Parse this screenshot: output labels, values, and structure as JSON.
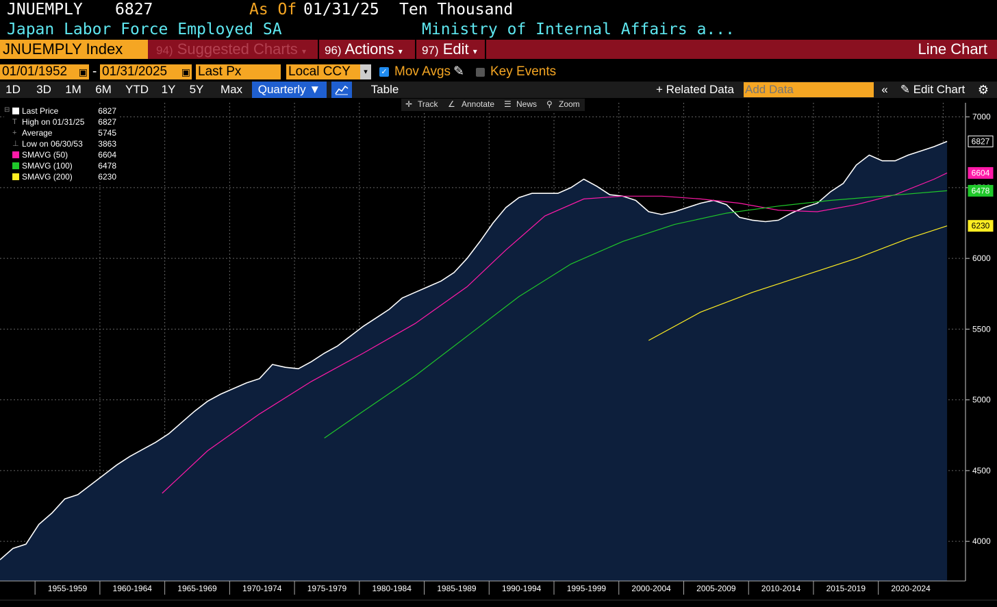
{
  "header": {
    "ticker": "JNUEMPLY",
    "last_value": "6827",
    "as_of_label": "As Of",
    "as_of_date": "01/31/25",
    "units": "Ten Thousand",
    "description": "Japan Labor Force Employed SA",
    "source": "Ministry of Internal Affairs a..."
  },
  "menubar": {
    "security": "JNUEMPLY Index",
    "suggested_num": "94)",
    "suggested": "Suggested Charts",
    "actions_num": "96)",
    "actions": "Actions",
    "edit_num": "97)",
    "edit": "Edit",
    "chart_type": "Line Chart"
  },
  "controls": {
    "start_date": "01/01/1952",
    "dash": "-",
    "end_date": "01/31/2025",
    "field": "Last Px",
    "currency": "Local CCY",
    "mov_avgs": "Mov Avgs",
    "key_events": "Key Events"
  },
  "periods": [
    "1D",
    "3D",
    "1M",
    "6M",
    "YTD",
    "1Y",
    "5Y",
    "Max"
  ],
  "frequency": "Quarterly",
  "table_label": "Table",
  "related_data": "Related Data",
  "add_data_placeholder": "Add Data",
  "edit_chart": "Edit Chart",
  "tools": {
    "track": "Track",
    "annotate": "Annotate",
    "news": "News",
    "zoom": "Zoom"
  },
  "legend": [
    {
      "label": "Last Price",
      "value": "6827",
      "color": "#ffffff"
    },
    {
      "label": "High on 01/31/25",
      "value": "6827",
      "color": ""
    },
    {
      "label": "Average",
      "value": "5745",
      "color": ""
    },
    {
      "label": "Low on 06/30/53",
      "value": "3863",
      "color": ""
    },
    {
      "label": "SMAVG (50)",
      "value": "6604",
      "color": "#ff1aa8"
    },
    {
      "label": "SMAVG (100)",
      "value": "6478",
      "color": "#1fc82a"
    },
    {
      "label": "SMAVG (200)",
      "value": "6230",
      "color": "#ffee22"
    }
  ],
  "colors": {
    "accent_orange": "#f5a623",
    "menu_red": "#8a1020",
    "area_fill": "#0d1f3c",
    "freq_blue": "#1f5fd0"
  },
  "chart_data": {
    "type": "area",
    "y_ticks": [
      4000,
      4500,
      5000,
      5500,
      6000,
      6500,
      7000
    ],
    "ylim": [
      3720,
      7100
    ],
    "x_tick_labels": [
      "1955-1959",
      "1960-1964",
      "1965-1969",
      "1970-1974",
      "1975-1979",
      "1980-1984",
      "1985-1989",
      "1990-1994",
      "1995-1999",
      "2000-2004",
      "2005-2009",
      "2010-2014",
      "2015-2019",
      "2020-2024"
    ],
    "xlim": [
      1952.0,
      2025.1
    ],
    "series": [
      {
        "name": "Last Price",
        "color": "#ffffff",
        "points": [
          [
            1952.0,
            3870
          ],
          [
            1953.0,
            3950
          ],
          [
            1954.0,
            3980
          ],
          [
            1955.0,
            4120
          ],
          [
            1956.0,
            4200
          ],
          [
            1957.0,
            4300
          ],
          [
            1958.0,
            4330
          ],
          [
            1959.0,
            4400
          ],
          [
            1960.0,
            4470
          ],
          [
            1961.0,
            4540
          ],
          [
            1962.0,
            4600
          ],
          [
            1963.0,
            4650
          ],
          [
            1964.0,
            4700
          ],
          [
            1965.0,
            4760
          ],
          [
            1966.0,
            4840
          ],
          [
            1967.0,
            4920
          ],
          [
            1968.0,
            4990
          ],
          [
            1969.0,
            5040
          ],
          [
            1970.0,
            5080
          ],
          [
            1971.0,
            5120
          ],
          [
            1972.0,
            5150
          ],
          [
            1973.0,
            5250
          ],
          [
            1974.0,
            5230
          ],
          [
            1975.0,
            5220
          ],
          [
            1976.0,
            5270
          ],
          [
            1977.0,
            5330
          ],
          [
            1978.0,
            5380
          ],
          [
            1979.0,
            5450
          ],
          [
            1980.0,
            5520
          ],
          [
            1981.0,
            5580
          ],
          [
            1982.0,
            5640
          ],
          [
            1983.0,
            5720
          ],
          [
            1984.0,
            5760
          ],
          [
            1985.0,
            5800
          ],
          [
            1986.0,
            5840
          ],
          [
            1987.0,
            5900
          ],
          [
            1988.0,
            6000
          ],
          [
            1989.0,
            6120
          ],
          [
            1990.0,
            6250
          ],
          [
            1991.0,
            6360
          ],
          [
            1992.0,
            6430
          ],
          [
            1993.0,
            6460
          ],
          [
            1994.0,
            6460
          ],
          [
            1995.0,
            6460
          ],
          [
            1996.0,
            6500
          ],
          [
            1997.0,
            6560
          ],
          [
            1998.0,
            6510
          ],
          [
            1999.0,
            6450
          ],
          [
            2000.0,
            6440
          ],
          [
            2001.0,
            6410
          ],
          [
            2002.0,
            6330
          ],
          [
            2003.0,
            6310
          ],
          [
            2004.0,
            6330
          ],
          [
            2005.0,
            6360
          ],
          [
            2006.0,
            6390
          ],
          [
            2007.0,
            6410
          ],
          [
            2008.0,
            6380
          ],
          [
            2009.0,
            6290
          ],
          [
            2010.0,
            6270
          ],
          [
            2011.0,
            6260
          ],
          [
            2012.0,
            6270
          ],
          [
            2013.0,
            6320
          ],
          [
            2014.0,
            6360
          ],
          [
            2015.0,
            6390
          ],
          [
            2016.0,
            6470
          ],
          [
            2017.0,
            6530
          ],
          [
            2018.0,
            6660
          ],
          [
            2019.0,
            6730
          ],
          [
            2020.0,
            6690
          ],
          [
            2021.0,
            6690
          ],
          [
            2022.0,
            6730
          ],
          [
            2023.0,
            6760
          ],
          [
            2024.0,
            6790
          ],
          [
            2025.0,
            6827
          ]
        ]
      },
      {
        "name": "SMAVG (50)",
        "color": "#ff1aa8",
        "points": [
          [
            1964.5,
            4340
          ],
          [
            1968.0,
            4640
          ],
          [
            1972.0,
            4900
          ],
          [
            1976.0,
            5130
          ],
          [
            1980.0,
            5330
          ],
          [
            1984.0,
            5540
          ],
          [
            1988.0,
            5800
          ],
          [
            1991.0,
            6060
          ],
          [
            1994.0,
            6300
          ],
          [
            1997.0,
            6420
          ],
          [
            2000.0,
            6440
          ],
          [
            2003.0,
            6440
          ],
          [
            2006.0,
            6420
          ],
          [
            2009.0,
            6390
          ],
          [
            2012.0,
            6340
          ],
          [
            2015.0,
            6330
          ],
          [
            2018.0,
            6380
          ],
          [
            2021.0,
            6450
          ],
          [
            2024.0,
            6560
          ],
          [
            2025.0,
            6604
          ]
        ]
      },
      {
        "name": "SMAVG (100)",
        "color": "#1fc82a",
        "points": [
          [
            1977.0,
            4730
          ],
          [
            1980.0,
            4920
          ],
          [
            1984.0,
            5170
          ],
          [
            1988.0,
            5450
          ],
          [
            1992.0,
            5730
          ],
          [
            1996.0,
            5960
          ],
          [
            2000.0,
            6120
          ],
          [
            2004.0,
            6240
          ],
          [
            2008.0,
            6320
          ],
          [
            2012.0,
            6370
          ],
          [
            2016.0,
            6410
          ],
          [
            2020.0,
            6440
          ],
          [
            2025.0,
            6478
          ]
        ]
      },
      {
        "name": "SMAVG (200)",
        "color": "#ffee22",
        "points": [
          [
            2002.0,
            5420
          ],
          [
            2006.0,
            5620
          ],
          [
            2010.0,
            5760
          ],
          [
            2014.0,
            5880
          ],
          [
            2018.0,
            6000
          ],
          [
            2022.0,
            6140
          ],
          [
            2025.0,
            6230
          ]
        ]
      }
    ]
  }
}
